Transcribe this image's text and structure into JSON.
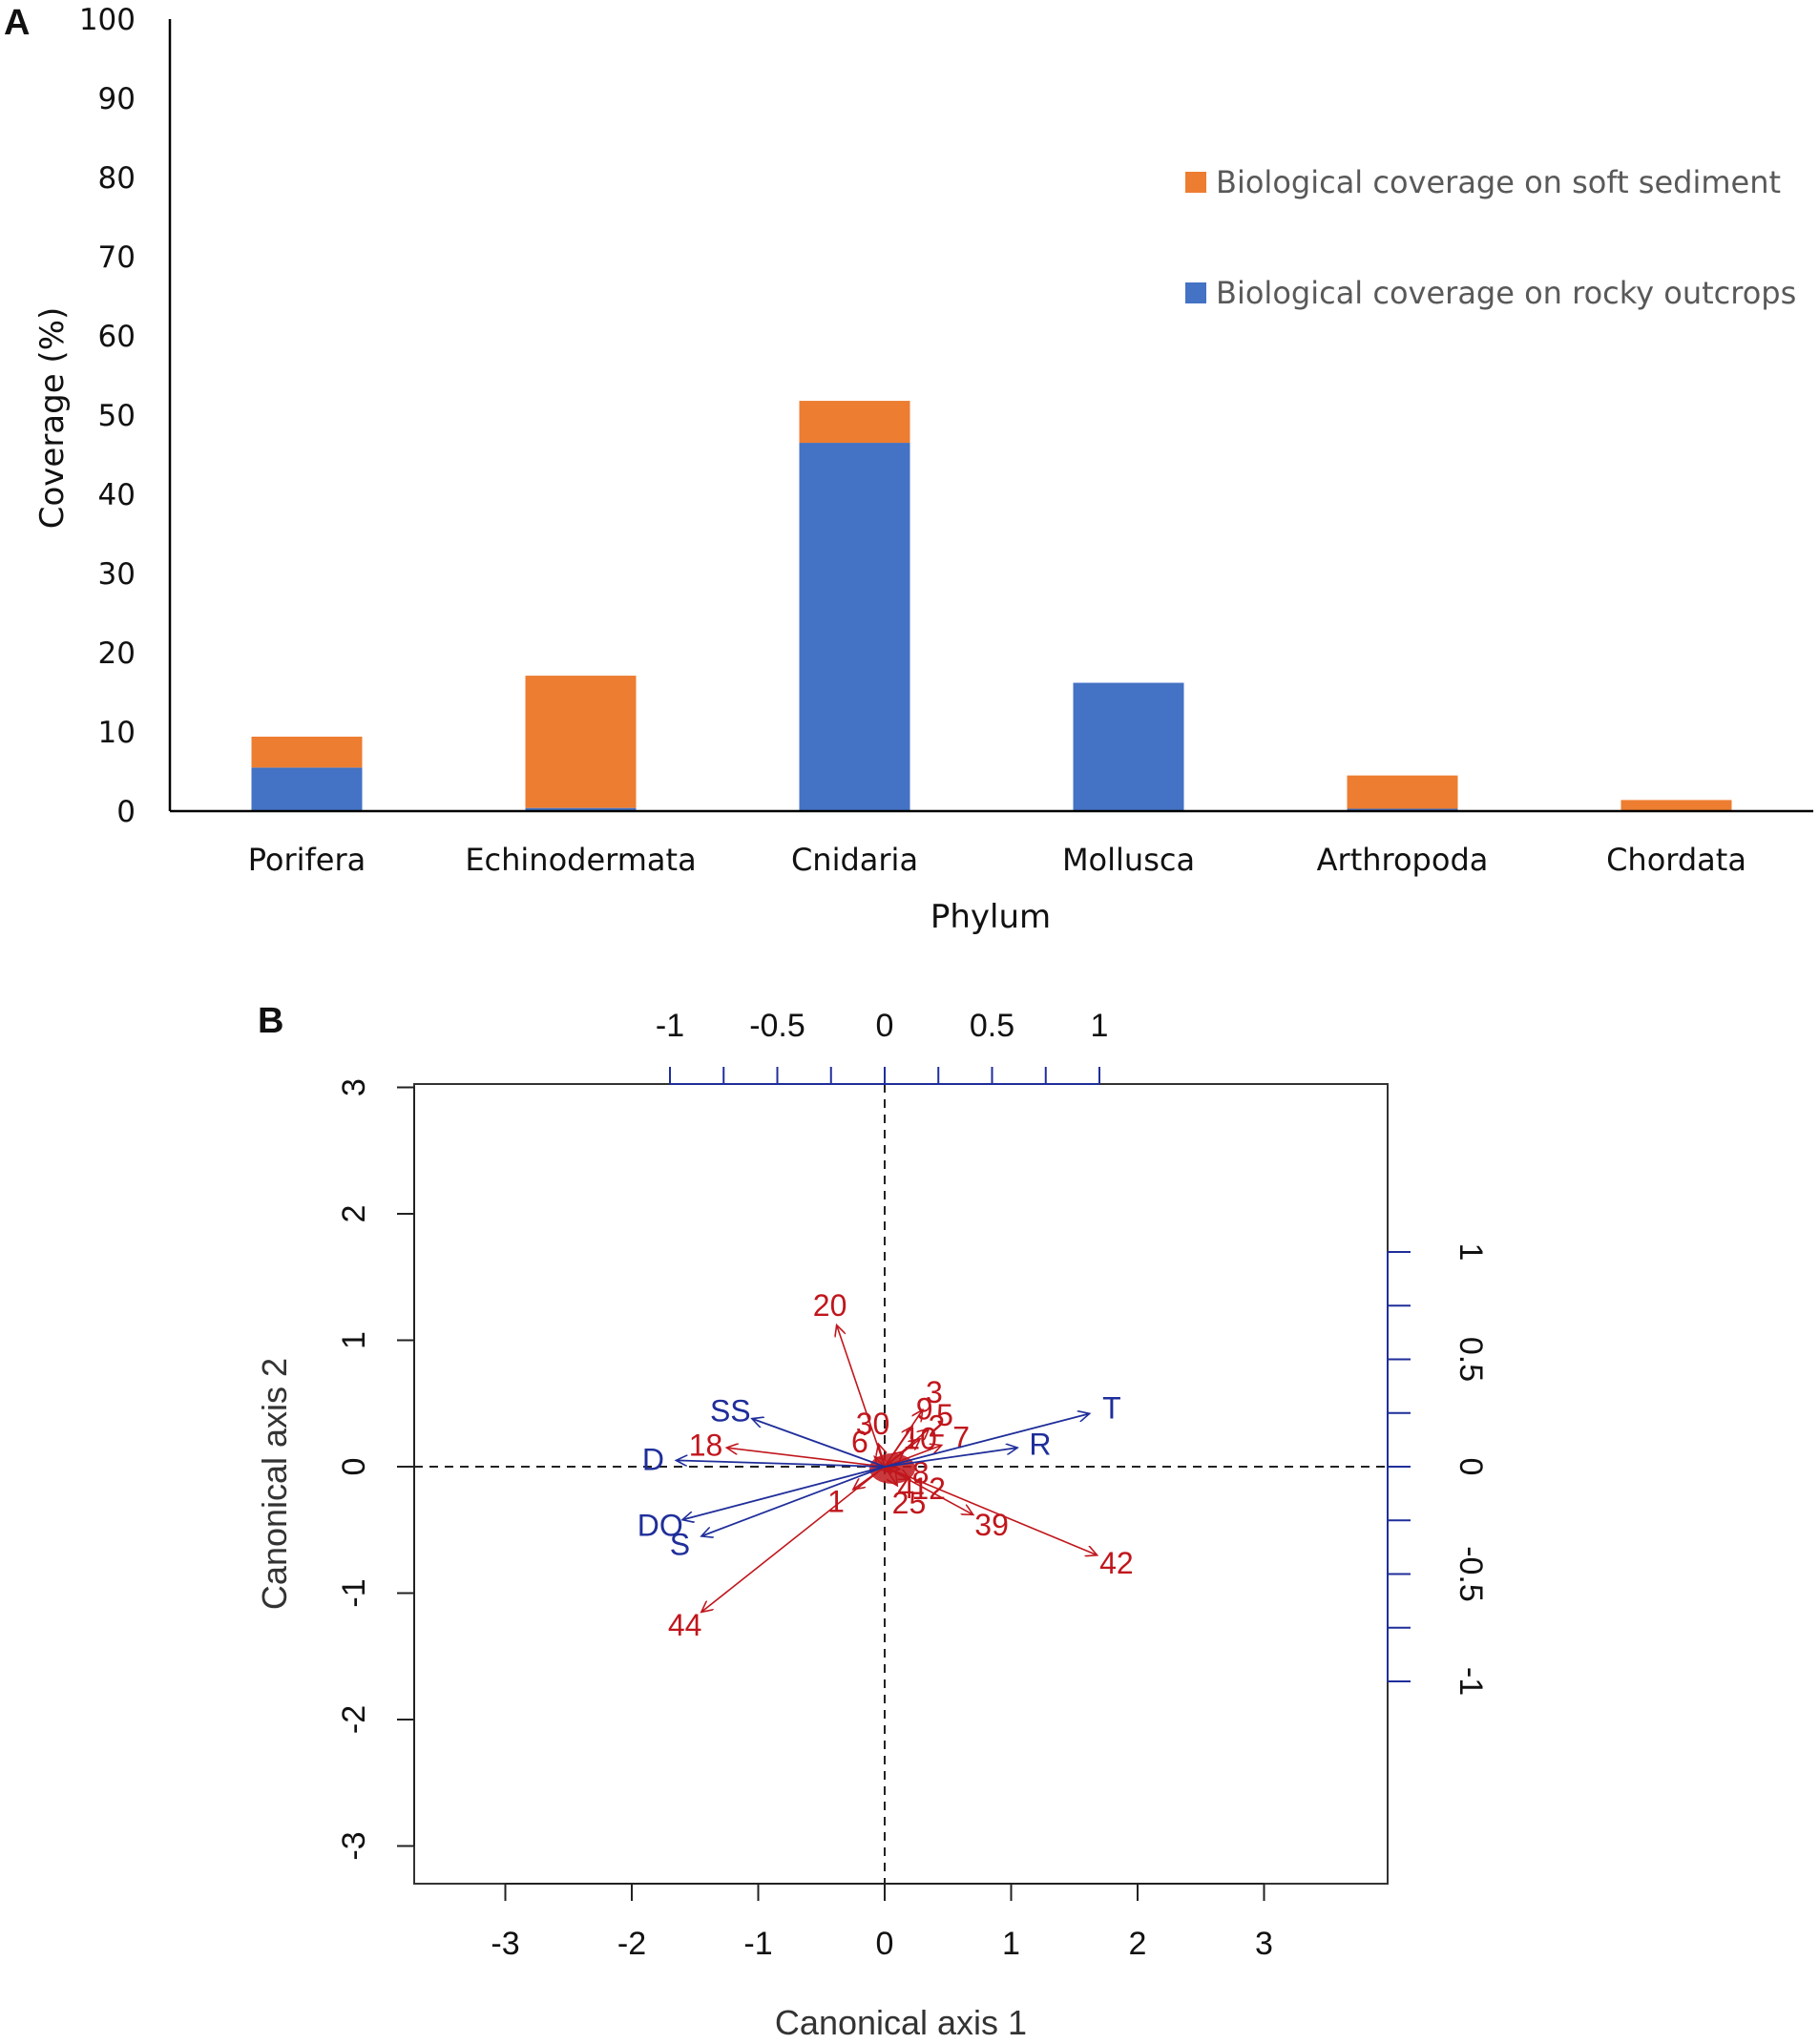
{
  "panels": {
    "a_label": "A",
    "b_label": "B"
  },
  "chart_data": [
    {
      "type": "bar",
      "stacked": true,
      "title": "",
      "xlabel": "Phylum",
      "ylabel": "Coverage (%)",
      "ylim": [
        0,
        100
      ],
      "yticks": [
        "0",
        "10",
        "20",
        "30",
        "40",
        "50",
        "60",
        "70",
        "80",
        "90",
        "100"
      ],
      "categories": [
        "Porifera",
        "Echinodermata",
        "Cnidaria",
        "Mollusca",
        "Arthropoda",
        "Chordata"
      ],
      "series": [
        {
          "name": "Biological coverage on rocky outcrops",
          "color": "#4472c4",
          "values": [
            5.5,
            0.4,
            46.5,
            16.2,
            0.3,
            0
          ]
        },
        {
          "name": "Biological coverage on soft sediment",
          "color": "#ed7d31",
          "values": [
            3.9,
            16.7,
            5.3,
            0,
            4.2,
            1.4
          ]
        }
      ],
      "legend": {
        "position": "top-right",
        "entries": [
          "Biological coverage on soft sediment",
          "Biological coverage on rocky outcrops"
        ]
      }
    },
    {
      "type": "scatter",
      "subtype": "biplot",
      "xlabel": "Canonical axis 1",
      "ylabel": "Canonical axis 2",
      "xlim": [
        -3.75,
        4
      ],
      "ylim": [
        -3.3,
        3
      ],
      "xticks": [
        "-3",
        "-2",
        "-1",
        "0",
        "1",
        "2",
        "3"
      ],
      "yticks": [
        "-3",
        "-2",
        "-1",
        "0",
        "1",
        "2",
        "3"
      ],
      "top_axis_ticks": [
        "-1",
        "-0.5",
        "0",
        "0.5",
        "1"
      ],
      "right_axis_ticks": [
        "-1",
        "-0.5",
        "0",
        "0.5",
        "1"
      ],
      "env_color": "#1f2e9a",
      "species_color": "#c0161c",
      "environmental_vectors": [
        {
          "label": "T",
          "x": 1.62,
          "y": 0.42
        },
        {
          "label": "R",
          "x": 1.05,
          "y": 0.15
        },
        {
          "label": "SS",
          "x": -1.05,
          "y": 0.38
        },
        {
          "label": "D",
          "x": -1.65,
          "y": 0.05
        },
        {
          "label": "DO",
          "x": -1.6,
          "y": -0.42
        },
        {
          "label": "S",
          "x": -1.45,
          "y": -0.55
        }
      ],
      "species_vectors": [
        {
          "label": "20",
          "x": -0.38,
          "y": 1.12
        },
        {
          "label": "18",
          "x": -1.25,
          "y": 0.15
        },
        {
          "label": "44",
          "x": -1.45,
          "y": -1.15
        },
        {
          "label": "42",
          "x": 1.68,
          "y": -0.7
        },
        {
          "label": "39",
          "x": 0.7,
          "y": -0.38
        },
        {
          "label": "7",
          "x": 0.45,
          "y": 0.17
        },
        {
          "label": "3",
          "x": 0.3,
          "y": 0.45
        },
        {
          "label": "5",
          "x": 0.35,
          "y": 0.3
        },
        {
          "label": "9",
          "x": 0.22,
          "y": 0.32
        },
        {
          "label": "2",
          "x": 0.28,
          "y": 0.22
        },
        {
          "label": "10",
          "x": 0.15,
          "y": 0.12
        },
        {
          "label": "30",
          "x": -0.05,
          "y": 0.18
        },
        {
          "label": "12",
          "x": 0.2,
          "y": -0.1
        },
        {
          "label": "25",
          "x": 0.1,
          "y": -0.15
        },
        {
          "label": "4",
          "x": 0.05,
          "y": -0.05
        },
        {
          "label": "6",
          "x": -0.08,
          "y": 0.08
        },
        {
          "label": "8",
          "x": 0.12,
          "y": -0.02
        },
        {
          "label": "1",
          "x": -0.25,
          "y": -0.18
        }
      ]
    }
  ]
}
